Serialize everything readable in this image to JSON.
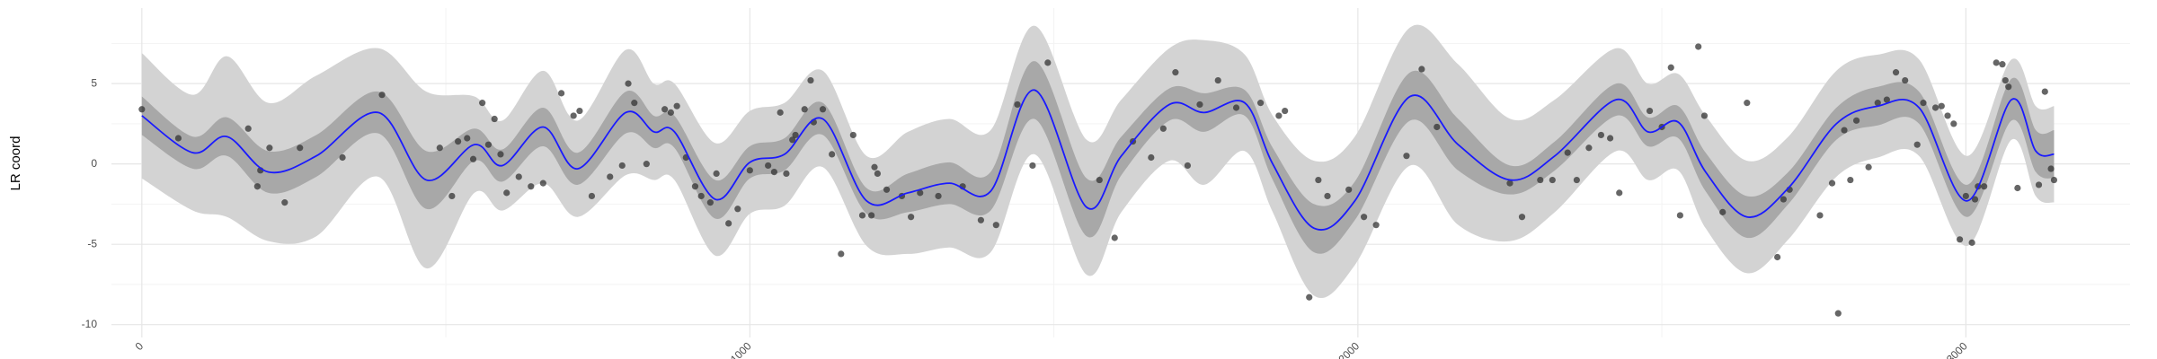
{
  "chart_data": {
    "type": "line",
    "ylabel": "LR coord",
    "xlim": [
      -50,
      3270
    ],
    "ylim": [
      -10.8,
      9.7
    ],
    "xticks": [
      0,
      1000,
      2000,
      3000
    ],
    "yticks": [
      -10,
      -5,
      0,
      5
    ],
    "xminor": [
      500,
      1500,
      2500
    ],
    "yminor": [
      -7.5,
      -2.5,
      2.5,
      7.5
    ],
    "grid": true,
    "x": [
      0,
      84,
      140,
      208,
      287,
      389,
      468,
      547,
      593,
      660,
      717,
      796,
      842,
      876,
      943,
      1000,
      1057,
      1120,
      1192,
      1260,
      1328,
      1396,
      1468,
      1554,
      1611,
      1690,
      1747,
      1814,
      1860,
      1928,
      1995,
      2086,
      2165,
      2251,
      2324,
      2425,
      2477,
      2527,
      2572,
      2640,
      2708,
      2787,
      2855,
      2923,
      3002,
      3075,
      3115,
      3145
    ],
    "bands": [
      {
        "color": "#d3d3d3",
        "lower": [
          -0.9,
          -2.9,
          -3.3,
          -4.8,
          -4.5,
          -0.8,
          -6.5,
          -1.8,
          -2.9,
          -1.2,
          -3.3,
          -0.7,
          -1.0,
          -1.0,
          -5.7,
          -3.1,
          -2.6,
          -0.2,
          -5.1,
          -5.6,
          -5.2,
          -5.5,
          0.6,
          -6.9,
          -3.0,
          0.2,
          -1.3,
          0.8,
          -3.0,
          -8.2,
          -6.3,
          -0.1,
          -3.8,
          -4.8,
          -3.0,
          0.8,
          -1.0,
          -0.4,
          -4.0,
          -6.8,
          -4.7,
          -0.8,
          0.4,
          0.5,
          -5.1,
          1.5,
          -2.0,
          -2.4
        ],
        "upper": [
          6.9,
          4.3,
          6.7,
          3.8,
          5.5,
          7.2,
          4.5,
          4.2,
          2.7,
          5.8,
          2.7,
          7.1,
          5.0,
          5.0,
          1.3,
          3.3,
          3.8,
          5.8,
          0.5,
          2.0,
          2.8,
          2.1,
          8.6,
          1.5,
          4.0,
          7.2,
          7.7,
          6.8,
          3.0,
          0.2,
          1.7,
          8.5,
          6.2,
          2.8,
          4.0,
          7.2,
          5.0,
          5.6,
          3.0,
          0.2,
          1.7,
          5.8,
          6.8,
          6.5,
          0.5,
          6.5,
          3.6,
          3.6
        ]
      },
      {
        "color": "#a8a8a8",
        "lower": [
          1.8,
          -0.3,
          0.5,
          -1.8,
          -0.8,
          1.9,
          -2.8,
          0.2,
          -1.1,
          1.1,
          -1.3,
          1.9,
          1.0,
          1.0,
          -3.4,
          -0.9,
          -0.4,
          1.8,
          -3.1,
          -3.0,
          -2.5,
          -2.9,
          2.8,
          -4.5,
          -0.7,
          2.7,
          2.0,
          3.0,
          -1.0,
          -5.5,
          -3.5,
          2.7,
          -0.4,
          -1.9,
          -0.4,
          3.0,
          1.1,
          1.6,
          -1.7,
          -4.6,
          -2.5,
          1.5,
          2.4,
          2.5,
          -3.3,
          2.7,
          -0.5,
          -0.9
        ],
        "upper": [
          4.2,
          1.7,
          2.9,
          0.8,
          1.8,
          4.5,
          0.8,
          2.2,
          0.9,
          3.5,
          0.7,
          4.5,
          3.0,
          3.0,
          -1.0,
          1.1,
          1.6,
          3.8,
          -1.5,
          -0.6,
          0.1,
          -0.5,
          6.4,
          -0.9,
          1.7,
          4.7,
          4.4,
          4.6,
          1.0,
          -2.5,
          -1.1,
          5.7,
          2.8,
          -0.1,
          1.4,
          5.0,
          2.9,
          3.6,
          0.7,
          -2.0,
          -0.5,
          3.5,
          4.8,
          4.5,
          -1.3,
          5.3,
          2.1,
          2.1
        ]
      }
    ],
    "mean": {
      "color": "#1a1aff",
      "values": [
        3.0,
        0.7,
        1.7,
        -0.5,
        0.5,
        3.2,
        -1.0,
        1.2,
        -0.1,
        2.3,
        -0.3,
        3.2,
        2.0,
        2.0,
        -2.2,
        0.1,
        0.6,
        2.8,
        -2.3,
        -1.8,
        -1.2,
        -1.7,
        4.6,
        -2.7,
        0.5,
        3.7,
        3.2,
        3.8,
        0.0,
        -4.0,
        -2.3,
        4.2,
        1.2,
        -1.0,
        0.5,
        4.0,
        2.0,
        2.6,
        -0.5,
        -3.3,
        -1.5,
        2.5,
        3.6,
        3.5,
        -2.3,
        4.0,
        0.8,
        0.6
      ]
    },
    "points": {
      "color": "#333333",
      "x": [
        0,
        60,
        175,
        190,
        195,
        210,
        235,
        260,
        330,
        395,
        490,
        510,
        520,
        535,
        545,
        560,
        570,
        580,
        590,
        600,
        620,
        640,
        660,
        690,
        710,
        720,
        740,
        770,
        790,
        800,
        810,
        830,
        860,
        870,
        880,
        895,
        910,
        920,
        935,
        945,
        965,
        980,
        1000,
        1030,
        1040,
        1050,
        1060,
        1070,
        1075,
        1090,
        1100,
        1105,
        1120,
        1135,
        1150,
        1170,
        1185,
        1200,
        1205,
        1210,
        1225,
        1250,
        1265,
        1280,
        1310,
        1350,
        1380,
        1405,
        1440,
        1465,
        1490,
        1575,
        1600,
        1630,
        1660,
        1680,
        1700,
        1720,
        1740,
        1770,
        1800,
        1840,
        1870,
        1880,
        1920,
        1935,
        1950,
        1985,
        2010,
        2030,
        2080,
        2105,
        2130,
        2250,
        2270,
        2300,
        2320,
        2345,
        2360,
        2380,
        2400,
        2415,
        2430,
        2480,
        2500,
        2515,
        2530,
        2560,
        2570,
        2600,
        2640,
        2690,
        2700,
        2710,
        2760,
        2780,
        2790,
        2800,
        2810,
        2820,
        2840,
        2855,
        2870,
        2885,
        2900,
        2920,
        2930,
        2950,
        2960,
        2970,
        2980,
        2990,
        3000,
        3010,
        3015,
        3020,
        3030,
        3050,
        3060,
        3065,
        3070,
        3085,
        3120,
        3130,
        3140,
        3145
      ],
      "y": [
        3.4,
        1.6,
        2.2,
        -1.4,
        -0.4,
        1.0,
        -2.4,
        1.0,
        0.4,
        4.3,
        1.0,
        -2.0,
        1.4,
        1.6,
        0.3,
        3.8,
        1.2,
        2.8,
        0.6,
        -1.8,
        -0.8,
        -1.4,
        -1.2,
        4.4,
        3.0,
        3.3,
        -2.0,
        -0.8,
        -0.1,
        5.0,
        3.8,
        0.0,
        3.4,
        3.2,
        3.6,
        0.4,
        -1.4,
        -2.0,
        -2.4,
        -0.6,
        -3.7,
        -2.8,
        -0.4,
        -0.1,
        -0.5,
        3.2,
        -0.6,
        1.5,
        1.8,
        3.4,
        5.2,
        2.6,
        3.4,
        0.6,
        -5.6,
        1.8,
        -3.2,
        -3.2,
        -0.2,
        -0.6,
        -1.6,
        -2.0,
        -3.3,
        -1.8,
        -2.0,
        -1.4,
        -3.5,
        -3.8,
        3.7,
        -0.1,
        6.3,
        -1.0,
        -4.6,
        1.4,
        0.4,
        2.2,
        5.7,
        -0.1,
        3.7,
        5.2,
        3.5,
        3.8,
        3.0,
        3.3,
        -8.3,
        -1.0,
        -2.0,
        -1.6,
        -3.3,
        -3.8,
        0.5,
        5.9,
        2.3,
        -1.2,
        -3.3,
        -1.0,
        -1.0,
        0.7,
        -1.0,
        1.0,
        1.8,
        1.6,
        -1.8,
        3.3,
        2.3,
        6.0,
        -3.2,
        7.3,
        3.0,
        -3.0,
        3.8,
        -5.8,
        -2.2,
        -1.6,
        -3.2,
        -1.2,
        -9.3,
        2.1,
        -1.0,
        2.7,
        -0.2,
        3.8,
        4.0,
        5.7,
        5.2,
        1.2,
        3.8,
        3.5,
        3.6,
        3.0,
        2.5,
        -4.7,
        -2.0,
        -4.9,
        -2.2,
        -1.4,
        -1.4,
        6.3,
        6.2,
        5.2,
        4.8,
        -1.5,
        -1.3,
        4.5,
        -0.3,
        -1.0
      ]
    }
  }
}
